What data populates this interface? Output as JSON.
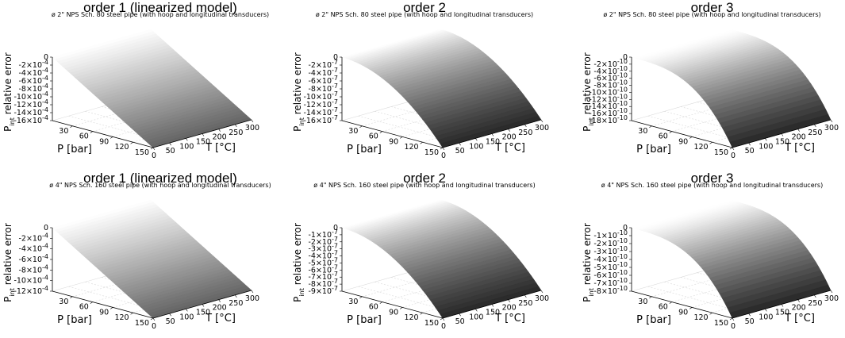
{
  "chart_data": [
    {
      "type": "surface",
      "title": "order 1 (linearized model)",
      "subtitle": "ø 2\" NPS Sch. 80 steel pipe (with hoop and longitudinal transducers)",
      "xlabel": "P [bar]",
      "ylabel": "T [°C]",
      "zlabel_main": "P",
      "zlabel_sub": "int",
      "zlabel_rest": " relative error",
      "x_ticks": [
        "30",
        "60",
        "90",
        "120",
        "150"
      ],
      "y_ticks": [
        "0",
        "50",
        "100",
        "150",
        "200",
        "250",
        "300"
      ],
      "z_ticks": [
        {
          "m": "0",
          "e": ""
        },
        {
          "m": "-2×10",
          "e": "-4"
        },
        {
          "m": "-4×10",
          "e": "-4"
        },
        {
          "m": "-6×10",
          "e": "-4"
        },
        {
          "m": "-8×10",
          "e": "-4"
        },
        {
          "m": "-10×10",
          "e": "-4"
        },
        {
          "m": "-12×10",
          "e": "-4"
        },
        {
          "m": "-14×10",
          "e": "-4"
        },
        {
          "m": "-16×10",
          "e": "-4"
        }
      ],
      "xlim": [
        0,
        150
      ],
      "ylim": [
        0,
        300
      ],
      "zlim": [
        -0.0016,
        0
      ],
      "surface_shape": "linear",
      "z_at_max_P": -0.0016
    },
    {
      "type": "surface",
      "title": "order 2",
      "subtitle": "ø 2\" NPS Sch. 80 steel pipe (with hoop and longitudinal transducers)",
      "xlabel": "P [bar]",
      "ylabel": "T [°C]",
      "zlabel_main": "P",
      "zlabel_sub": "int",
      "zlabel_rest": " relative error",
      "x_ticks": [
        "30",
        "60",
        "90",
        "120",
        "150"
      ],
      "y_ticks": [
        "0",
        "50",
        "100",
        "150",
        "200",
        "250",
        "300"
      ],
      "z_ticks": [
        {
          "m": "0",
          "e": ""
        },
        {
          "m": "-2×10",
          "e": "-7"
        },
        {
          "m": "-4×10",
          "e": "-7"
        },
        {
          "m": "-6×10",
          "e": "-7"
        },
        {
          "m": "-8×10",
          "e": "-7"
        },
        {
          "m": "-10×10",
          "e": "-7"
        },
        {
          "m": "-12×10",
          "e": "-7"
        },
        {
          "m": "-14×10",
          "e": "-7"
        },
        {
          "m": "-16×10",
          "e": "-7"
        }
      ],
      "xlim": [
        0,
        150
      ],
      "ylim": [
        0,
        300
      ],
      "zlim": [
        -1.6e-06,
        0
      ],
      "surface_shape": "quadratic",
      "z_at_max_P": -1.6e-06
    },
    {
      "type": "surface",
      "title": "order 3",
      "subtitle": "ø 2\" NPS Sch. 80 steel pipe (with hoop and longitudinal transducers)",
      "xlabel": "P [bar]",
      "ylabel": "T [°C]",
      "zlabel_main": "P",
      "zlabel_sub": "int",
      "zlabel_rest": " relative error",
      "x_ticks": [
        "30",
        "60",
        "90",
        "120",
        "150"
      ],
      "y_ticks": [
        "0",
        "50",
        "100",
        "150",
        "200",
        "250",
        "300"
      ],
      "z_ticks": [
        {
          "m": "0",
          "e": ""
        },
        {
          "m": "-2×10",
          "e": "-10"
        },
        {
          "m": "-4×10",
          "e": "-10"
        },
        {
          "m": "-6×10",
          "e": "-10"
        },
        {
          "m": "-8×10",
          "e": "-10"
        },
        {
          "m": "-10×10",
          "e": "-10"
        },
        {
          "m": "-12×10",
          "e": "-10"
        },
        {
          "m": "-14×10",
          "e": "-10"
        },
        {
          "m": "-16×10",
          "e": "-10"
        },
        {
          "m": "-18×10",
          "e": "-10"
        }
      ],
      "xlim": [
        0,
        150
      ],
      "ylim": [
        0,
        300
      ],
      "zlim": [
        -1.8e-09,
        0
      ],
      "surface_shape": "cubic",
      "z_at_max_P": -1.8e-09
    },
    {
      "type": "surface",
      "title": "order 1 (linearized model)",
      "subtitle": "ø 4\" NPS Sch. 160 steel pipe (with hoop and longitudinal transducers)",
      "xlabel": "P [bar]",
      "ylabel": "T [°C]",
      "zlabel_main": "P",
      "zlabel_sub": "int",
      "zlabel_rest": " relative error",
      "x_ticks": [
        "30",
        "60",
        "90",
        "120",
        "150"
      ],
      "y_ticks": [
        "0",
        "50",
        "100",
        "150",
        "200",
        "250",
        "300"
      ],
      "z_ticks": [
        {
          "m": "0",
          "e": ""
        },
        {
          "m": "-2×10",
          "e": "-4"
        },
        {
          "m": "-4×10",
          "e": "-4"
        },
        {
          "m": "-6×10",
          "e": "-4"
        },
        {
          "m": "-8×10",
          "e": "-4"
        },
        {
          "m": "-10×10",
          "e": "-4"
        },
        {
          "m": "-12×10",
          "e": "-4"
        }
      ],
      "xlim": [
        0,
        150
      ],
      "ylim": [
        0,
        300
      ],
      "zlim": [
        -0.0012,
        0
      ],
      "surface_shape": "linear",
      "z_at_max_P": -0.0012
    },
    {
      "type": "surface",
      "title": "order 2",
      "subtitle": "ø 4\" NPS Sch. 160 steel pipe (with hoop and longitudinal transducers)",
      "xlabel": "P [bar]",
      "ylabel": "T [°C]",
      "zlabel_main": "P",
      "zlabel_sub": "int",
      "zlabel_rest": " relative error",
      "x_ticks": [
        "30",
        "60",
        "90",
        "120",
        "150"
      ],
      "y_ticks": [
        "0",
        "50",
        "100",
        "150",
        "200",
        "250",
        "300"
      ],
      "z_ticks": [
        {
          "m": "0",
          "e": ""
        },
        {
          "m": "-1×10",
          "e": "-7"
        },
        {
          "m": "-2×10",
          "e": "-7"
        },
        {
          "m": "-3×10",
          "e": "-7"
        },
        {
          "m": "-4×10",
          "e": "-7"
        },
        {
          "m": "-5×10",
          "e": "-7"
        },
        {
          "m": "-6×10",
          "e": "-7"
        },
        {
          "m": "-7×10",
          "e": "-7"
        },
        {
          "m": "-8×10",
          "e": "-7"
        },
        {
          "m": "-9×10",
          "e": "-7"
        }
      ],
      "xlim": [
        0,
        150
      ],
      "ylim": [
        0,
        300
      ],
      "zlim": [
        -9e-07,
        0
      ],
      "surface_shape": "quadratic",
      "z_at_max_P": -9e-07
    },
    {
      "type": "surface",
      "title": "order 3",
      "subtitle": "ø 4\" NPS Sch. 160 steel pipe (with hoop and longitudinal transducers)",
      "xlabel": "P [bar]",
      "ylabel": "T [°C]",
      "zlabel_main": "P",
      "zlabel_sub": "int",
      "zlabel_rest": " relative error",
      "x_ticks": [
        "30",
        "60",
        "90",
        "120",
        "150"
      ],
      "y_ticks": [
        "0",
        "50",
        "100",
        "150",
        "200",
        "250",
        "300"
      ],
      "z_ticks": [
        {
          "m": "0",
          "e": ""
        },
        {
          "m": "-1×10",
          "e": "-10"
        },
        {
          "m": "-2×10",
          "e": "-10"
        },
        {
          "m": "-3×10",
          "e": "-10"
        },
        {
          "m": "-4×10",
          "e": "-10"
        },
        {
          "m": "-5×10",
          "e": "-10"
        },
        {
          "m": "-6×10",
          "e": "-10"
        },
        {
          "m": "-7×10",
          "e": "-10"
        },
        {
          "m": "-8×10",
          "e": "-10"
        }
      ],
      "xlim": [
        0,
        150
      ],
      "ylim": [
        0,
        300
      ],
      "zlim": [
        -8e-10,
        0
      ],
      "surface_shape": "cubic",
      "z_at_max_P": -8e-10
    }
  ]
}
